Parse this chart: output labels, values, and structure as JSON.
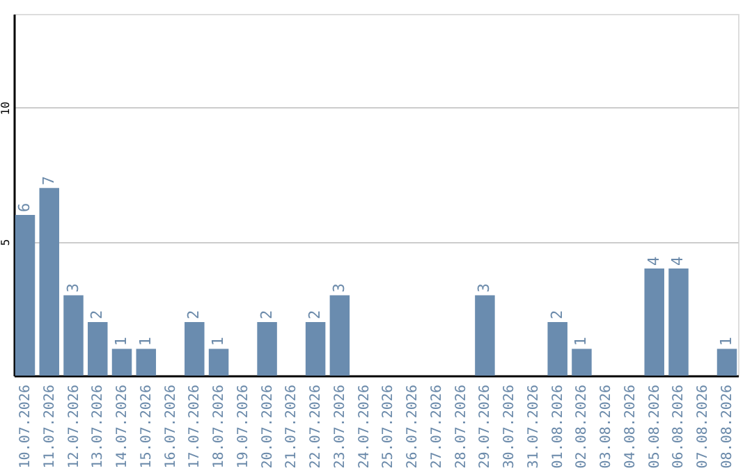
{
  "chart_data": {
    "type": "bar",
    "categories": [
      "10.07.2026",
      "11.07.2026",
      "12.07.2026",
      "13.07.2026",
      "14.07.2026",
      "15.07.2026",
      "16.07.2026",
      "17.07.2026",
      "18.07.2026",
      "19.07.2026",
      "20.07.2026",
      "21.07.2026",
      "22.07.2026",
      "23.07.2026",
      "24.07.2026",
      "25.07.2026",
      "26.07.2026",
      "27.07.2026",
      "28.07.2026",
      "29.07.2026",
      "30.07.2026",
      "31.07.2026",
      "01.08.2026",
      "02.08.2026",
      "03.08.2026",
      "04.08.2026",
      "05.08.2026",
      "06.08.2026",
      "07.08.2026",
      "08.08.2026"
    ],
    "values": [
      6,
      7,
      3,
      2,
      1,
      1,
      null,
      2,
      1,
      null,
      2,
      null,
      2,
      3,
      null,
      null,
      null,
      null,
      null,
      3,
      null,
      null,
      2,
      1,
      null,
      null,
      4,
      4,
      null,
      1
    ],
    "color": "#6a8caf",
    "ylim": [
      0,
      13.5
    ],
    "yticks": [
      5,
      10
    ],
    "grid": "y",
    "data_labels": true
  }
}
